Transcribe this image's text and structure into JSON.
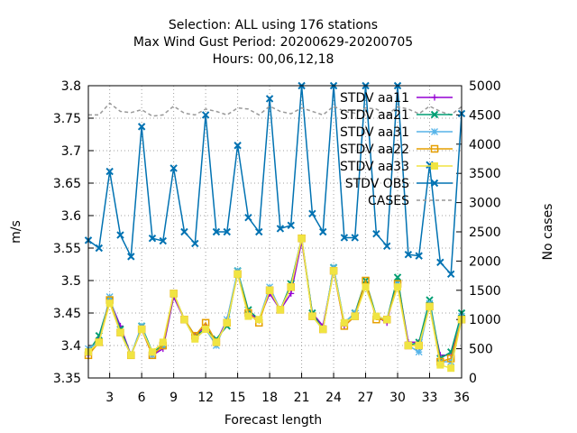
{
  "chart_data": {
    "type": "line",
    "title_lines": [
      "Selection: ALL using   176 stations",
      "Max Wind Gust   Period: 20200629-20200705",
      "Hours:  00,06,12,18"
    ],
    "xlabel": "Forecast length",
    "ylabel": "m/s",
    "y2label": "No cases",
    "xlim": [
      1,
      36
    ],
    "ylim": [
      3.35,
      3.8
    ],
    "y2lim": [
      0,
      5000
    ],
    "x_ticks": [
      3,
      6,
      9,
      12,
      15,
      18,
      21,
      24,
      27,
      30,
      33,
      36
    ],
    "y_ticks": [
      "3.35",
      "3.4",
      "3.45",
      "3.5",
      "3.55",
      "3.6",
      "3.65",
      "3.7",
      "3.75",
      "3.8"
    ],
    "y2_ticks": [
      "0",
      "500",
      "1000",
      "1500",
      "2000",
      "2500",
      "3000",
      "3500",
      "4000",
      "4500",
      "5000"
    ],
    "grid": true,
    "legend_position": "top-right",
    "x": [
      1,
      2,
      3,
      4,
      5,
      6,
      7,
      8,
      9,
      10,
      11,
      12,
      13,
      14,
      15,
      16,
      17,
      18,
      19,
      20,
      21,
      22,
      23,
      24,
      25,
      26,
      27,
      28,
      29,
      30,
      31,
      32,
      33,
      34,
      35,
      36
    ],
    "series": [
      {
        "name": "STDV aa11",
        "color": "#9400d3",
        "marker": "+",
        "dash": "",
        "values": [
          3.385,
          3.41,
          3.47,
          3.43,
          3.385,
          3.425,
          3.385,
          3.395,
          3.475,
          3.44,
          3.415,
          3.43,
          3.405,
          3.44,
          3.51,
          3.45,
          3.44,
          3.48,
          3.455,
          3.48,
          3.56,
          3.45,
          3.43,
          3.515,
          3.43,
          3.445,
          3.495,
          3.445,
          3.435,
          3.5,
          3.405,
          3.405,
          3.46,
          3.385,
          3.385,
          3.44
        ]
      },
      {
        "name": "STDV aa21",
        "color": "#009e73",
        "marker": "x",
        "dash": "",
        "values": [
          3.39,
          3.415,
          3.47,
          3.425,
          3.385,
          3.43,
          3.39,
          3.4,
          3.48,
          3.44,
          3.415,
          3.425,
          3.41,
          3.43,
          3.515,
          3.455,
          3.44,
          3.485,
          3.455,
          3.495,
          3.565,
          3.45,
          3.425,
          3.52,
          3.435,
          3.45,
          3.5,
          3.445,
          3.44,
          3.505,
          3.4,
          3.405,
          3.47,
          3.38,
          3.39,
          3.45
        ]
      },
      {
        "name": "STDV aa31",
        "color": "#56b4e9",
        "marker": "*",
        "dash": "",
        "values": [
          3.395,
          3.405,
          3.475,
          3.42,
          3.385,
          3.43,
          3.385,
          3.4,
          3.48,
          3.44,
          3.41,
          3.425,
          3.4,
          3.44,
          3.515,
          3.445,
          3.44,
          3.49,
          3.455,
          3.49,
          3.565,
          3.445,
          3.425,
          3.52,
          3.435,
          3.45,
          3.49,
          3.445,
          3.44,
          3.495,
          3.4,
          3.39,
          3.465,
          3.375,
          3.375,
          3.445
        ]
      },
      {
        "name": "STDV aa22",
        "color": "#e69f00",
        "marker": "sq",
        "dash": "",
        "values": [
          3.385,
          3.405,
          3.47,
          3.42,
          3.385,
          3.425,
          3.385,
          3.4,
          3.48,
          3.44,
          3.415,
          3.435,
          3.405,
          3.435,
          3.51,
          3.45,
          3.435,
          3.485,
          3.455,
          3.49,
          3.565,
          3.445,
          3.425,
          3.515,
          3.43,
          3.445,
          3.5,
          3.44,
          3.44,
          3.495,
          3.4,
          3.4,
          3.46,
          3.375,
          3.38,
          3.44
        ]
      },
      {
        "name": "STDV aa33",
        "color": "#f0e442",
        "marker": "sqf",
        "dash": "",
        "values": [
          3.39,
          3.405,
          3.465,
          3.42,
          3.385,
          3.425,
          3.39,
          3.405,
          3.48,
          3.44,
          3.41,
          3.425,
          3.405,
          3.435,
          3.51,
          3.445,
          3.44,
          3.485,
          3.455,
          3.49,
          3.565,
          3.445,
          3.425,
          3.515,
          3.435,
          3.445,
          3.49,
          3.445,
          3.44,
          3.49,
          3.4,
          3.4,
          3.46,
          3.37,
          3.365,
          3.44
        ]
      },
      {
        "name": "STDV OBS",
        "color": "#0072b2",
        "marker": "x",
        "dash": "",
        "values": [
          3.562,
          3.55,
          3.668,
          3.57,
          3.537,
          3.737,
          3.565,
          3.561,
          3.673,
          3.575,
          3.557,
          3.755,
          3.575,
          3.575,
          3.708,
          3.597,
          3.575,
          3.78,
          3.58,
          3.585,
          3.8,
          3.603,
          3.575,
          3.8,
          3.566,
          3.566,
          3.8,
          3.572,
          3.553,
          3.8,
          3.54,
          3.538,
          3.678,
          3.528,
          3.51,
          3.757
        ]
      },
      {
        "name": "CASES",
        "color": "#999999",
        "marker": "none",
        "dash": "4 3",
        "axis": "y2",
        "values": [
          4500,
          4500,
          4700,
          4560,
          4540,
          4590,
          4480,
          4500,
          4650,
          4530,
          4500,
          4600,
          4560,
          4500,
          4620,
          4600,
          4500,
          4650,
          4560,
          4520,
          4620,
          4560,
          4500,
          4650,
          4560,
          4530,
          4620,
          4600,
          4500,
          4640,
          4600,
          4520,
          4650,
          4560,
          4500,
          4640
        ]
      }
    ]
  }
}
